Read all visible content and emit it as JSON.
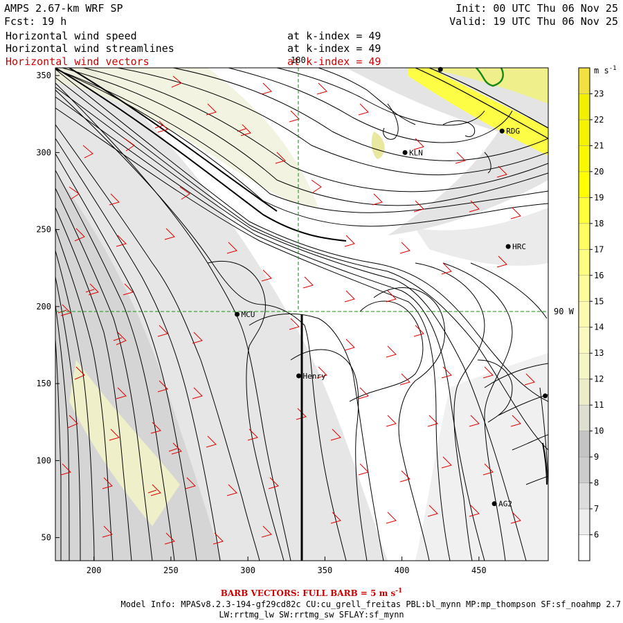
{
  "header": {
    "model": "AMPS 2.67-km WRF SP",
    "fcst": "Fcst:   19 h",
    "init": "Init: 00 UTC Thu 06 Nov 25",
    "valid": "Valid: 19 UTC Thu 06 Nov 25",
    "fields": [
      {
        "name": "Horizontal wind speed",
        "level": "at k-index =  49",
        "color": "#000000"
      },
      {
        "name": "Horizontal wind streamlines",
        "level": "at k-index =  49",
        "color": "#000000"
      },
      {
        "name": "Horizontal wind vectors",
        "level": "at k-index =  49",
        "color": "#cc0000"
      }
    ]
  },
  "map": {
    "x_ticks": [
      "200",
      "250",
      "300",
      "350",
      "400",
      "450"
    ],
    "y_ticks": [
      "50",
      "100",
      "150",
      "200",
      "250",
      "300",
      "350"
    ],
    "xlim": [
      175,
      495
    ],
    "ylim": [
      35,
      355
    ],
    "grid_labels": {
      "meridian": "180",
      "parallel": "90 W"
    },
    "stations": [
      {
        "label": "MCU",
        "x": 293,
        "y": 195
      },
      {
        "label": "KLN",
        "x": 402,
        "y": 300
      },
      {
        "label": "RDG",
        "x": 465,
        "y": 314
      },
      {
        "label": "HRC",
        "x": 469,
        "y": 239
      },
      {
        "label": "Henry",
        "x": 333,
        "y": 155
      },
      {
        "label": "AG2",
        "x": 460,
        "y": 72
      },
      {
        "label": "",
        "x": 493,
        "y": 142
      },
      {
        "label": "",
        "x": 425,
        "y": 354
      }
    ],
    "cross_section_x": 335,
    "cross_section_y_range": [
      35,
      195
    ]
  },
  "colorbar": {
    "unit": "m s",
    "unit_sup": "-1",
    "levels": [
      "6",
      "7",
      "8",
      "9",
      "10",
      "11",
      "12",
      "13",
      "14",
      "15",
      "16",
      "17",
      "18",
      "19",
      "20",
      "21",
      "22",
      "23"
    ],
    "colors": [
      "#ffffff",
      "#eeeeee",
      "#dddddd",
      "#cccccc",
      "#c4c4c4",
      "#dedfd0",
      "#ecedc8",
      "#f5f6c6",
      "#fafac0",
      "#fbfbb0",
      "#fcfc9a",
      "#fdfd80",
      "#fefe62",
      "#ffff3a",
      "#ffff00",
      "#f8f800",
      "#f4f400",
      "#f2f000",
      "#f0e040"
    ]
  },
  "footer": {
    "barb_note_pre": "BARB VECTORS:  FULL BARB = 5 m s",
    "barb_note_sup": "-1",
    "model_info_1": "Model Info: MPASv8.2.3-194-gf29cd82c CU:cu_grell_freitas PBL:bl_mynn MP:mp_thompson SF:sf_noahmp 2.7",
    "model_info_2": "LW:rrtmg_lw SW:rrtmg_sw SFLAY:sf_mynn"
  }
}
